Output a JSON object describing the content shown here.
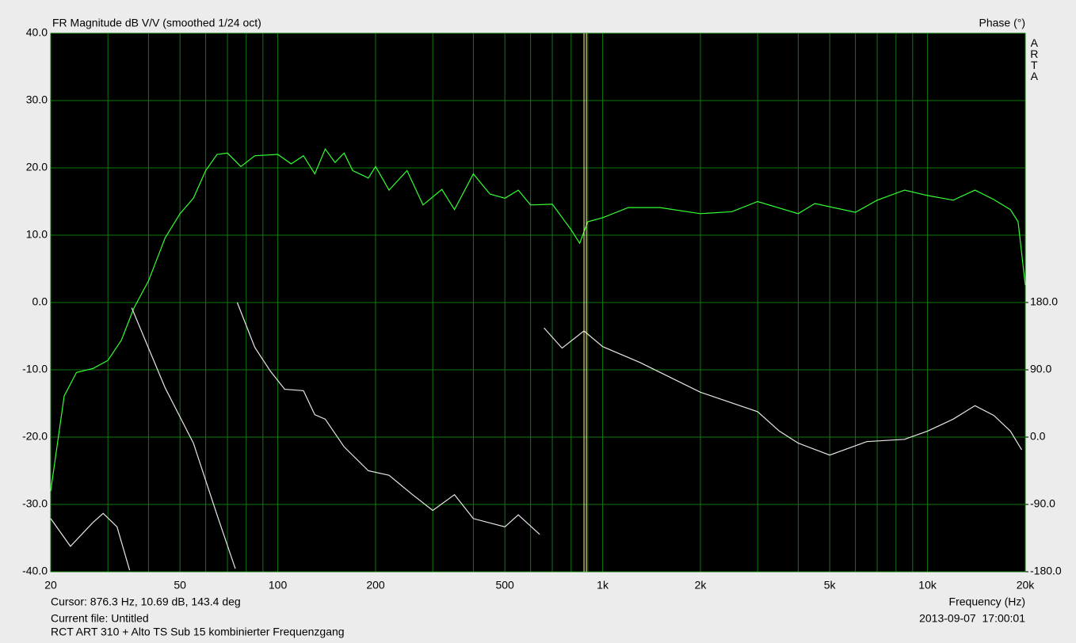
{
  "chart_data": {
    "type": "line",
    "title": "FR Magnitude dB V/V (smoothed 1/24 oct)",
    "y2_label": "Phase (°)",
    "brand": "ARTA",
    "xlabel": "Frequency (Hz)",
    "log_x": true,
    "grid": true,
    "xlim": [
      20,
      20000
    ],
    "xticks": [
      20,
      50,
      100,
      200,
      500,
      {
        "value": 1000,
        "label": "1k"
      },
      {
        "value": 2000,
        "label": "2k"
      },
      {
        "value": 5000,
        "label": "5k"
      },
      {
        "value": 10000,
        "label": "10k"
      },
      {
        "value": 20000,
        "label": "20k"
      }
    ],
    "ylim": [
      -40,
      40
    ],
    "yticks": [
      {
        "value": -40,
        "label": "-40.0"
      },
      {
        "value": -30,
        "label": "-30.0"
      },
      {
        "value": -20,
        "label": "-20.0"
      },
      {
        "value": -10,
        "label": "-10.0"
      },
      {
        "value": 0,
        "label": "0.0"
      },
      {
        "value": 10,
        "label": "10.0"
      },
      {
        "value": 20,
        "label": "20.0"
      },
      {
        "value": 30,
        "label": "30.0"
      },
      {
        "value": 40,
        "label": "40.0"
      }
    ],
    "y2lim": [
      -180,
      540
    ],
    "y2ticks": [
      {
        "value": -180,
        "label": "-180.0"
      },
      {
        "value": -90,
        "label": "-90.0"
      },
      {
        "value": 0,
        "label": "0.0"
      },
      {
        "value": 90,
        "label": "90.0"
      },
      {
        "value": 180,
        "label": "180.0"
      }
    ],
    "series": [
      {
        "color": "#33ff33",
        "x": [
          20,
          22,
          24,
          27,
          30,
          33,
          36,
          40,
          45,
          50,
          55,
          60,
          65,
          70,
          77,
          85,
          100,
          110,
          120,
          130,
          140,
          150,
          160,
          170,
          190,
          200,
          220,
          250,
          280,
          320,
          350,
          400,
          450,
          500,
          550,
          600,
          700,
          800,
          850,
          900,
          1000,
          1200,
          1500,
          2000,
          2500,
          3000,
          4000,
          4500,
          6000,
          7000,
          8500,
          10000,
          12000,
          14000,
          16000,
          18000,
          19000,
          20000
        ],
        "values": [
          -28,
          -13.9,
          -10.4,
          -9.8,
          -8.6,
          -5.6,
          -0.9,
          3.2,
          9.6,
          13.2,
          15.5,
          19.6,
          22,
          22.2,
          20.2,
          21.8,
          22,
          20.6,
          21.8,
          19.1,
          22.8,
          20.8,
          22.2,
          19.6,
          18.5,
          20.2,
          16.7,
          19.6,
          14.5,
          16.8,
          13.8,
          19.1,
          16.1,
          15.5,
          16.7,
          14.5,
          14.6,
          10.8,
          8.8,
          12,
          12.6,
          14.1,
          14.1,
          13.2,
          13.5,
          15,
          13.2,
          14.7,
          13.4,
          15.2,
          16.7,
          15.9,
          15.2,
          16.7,
          15.3,
          13.8,
          12,
          2.6
        ]
      },
      {
        "color": "#e6e6e6",
        "axis": "y2",
        "x": [
          20,
          23,
          27,
          29,
          32,
          35,
          null,
          35.5,
          45,
          55,
          65,
          74,
          null,
          75,
          85,
          95,
          105,
          120,
          130,
          140,
          160,
          190,
          220,
          260,
          300,
          350,
          400,
          500,
          550,
          640,
          null,
          660,
          750,
          876,
          1000,
          1300,
          2000,
          3000,
          3500,
          4000,
          5000,
          6500,
          8500,
          10000,
          12000,
          14000,
          16000,
          18000,
          19500
        ],
        "values": [
          -109,
          -146,
          -114,
          -102,
          -120,
          -178,
          null,
          173,
          66,
          -8,
          -104,
          -176,
          null,
          180,
          120,
          88,
          64,
          62,
          30,
          24,
          -13,
          -45,
          -51,
          -77,
          -98,
          -77,
          -109,
          -120,
          -104,
          -130,
          null,
          146,
          119,
          142,
          121,
          100,
          60,
          34,
          8,
          -8,
          -24,
          -6,
          -3,
          8,
          24,
          42,
          29,
          8,
          -17
        ]
      }
    ],
    "cursor": {
      "x": 876.3,
      "label": "Cursor: 876.3 Hz, 10.69 dB, 143.4 deg",
      "color": "#ffff99"
    },
    "file": "Current file: Untitled",
    "description": "RCT ART 310 + Alto TS Sub 15 kombinierter Frequenzgang",
    "timestamp": "2013-09-07  17:00:01"
  }
}
